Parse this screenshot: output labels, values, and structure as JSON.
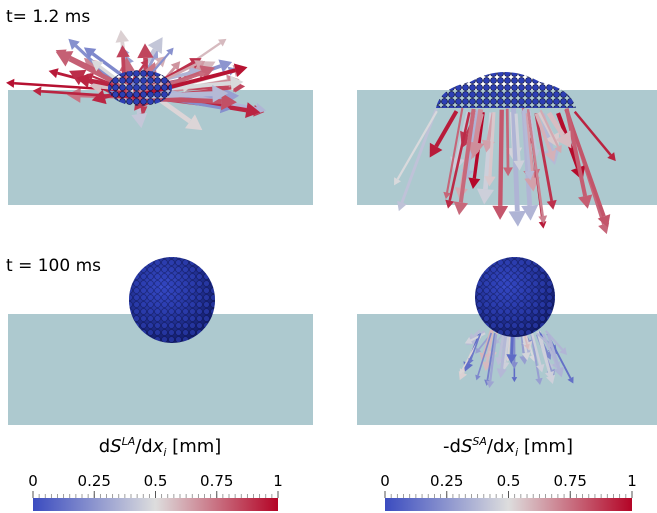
{
  "row_labels": [
    "t= 1.2 ms",
    "t = 100 ms"
  ],
  "colormap": [
    "#3b4cc0",
    "#dddddd",
    "#b40426"
  ],
  "colorbars": [
    {
      "label": [
        {
          "text": "d"
        },
        {
          "text": "S",
          "style": "italic"
        },
        {
          "text": "LA",
          "style": "sup"
        },
        {
          "text": "/d"
        },
        {
          "text": "x",
          "style": "italic"
        },
        {
          "text": "i",
          "style": "sub"
        },
        {
          "text": " [mm]"
        }
      ],
      "range": [
        0,
        1
      ],
      "ticks": [
        0,
        0.25,
        0.5,
        0.75,
        1
      ]
    },
    {
      "label": [
        {
          "text": "-d"
        },
        {
          "text": "S",
          "style": "italic"
        },
        {
          "text": "SA",
          "style": "sup"
        },
        {
          "text": "/d"
        },
        {
          "text": "x",
          "style": "italic"
        },
        {
          "text": "i",
          "style": "sub"
        },
        {
          "text": " [mm]"
        }
      ],
      "range": [
        0,
        1
      ],
      "ticks": [
        0,
        0.25,
        0.5,
        0.75,
        1
      ]
    }
  ]
}
